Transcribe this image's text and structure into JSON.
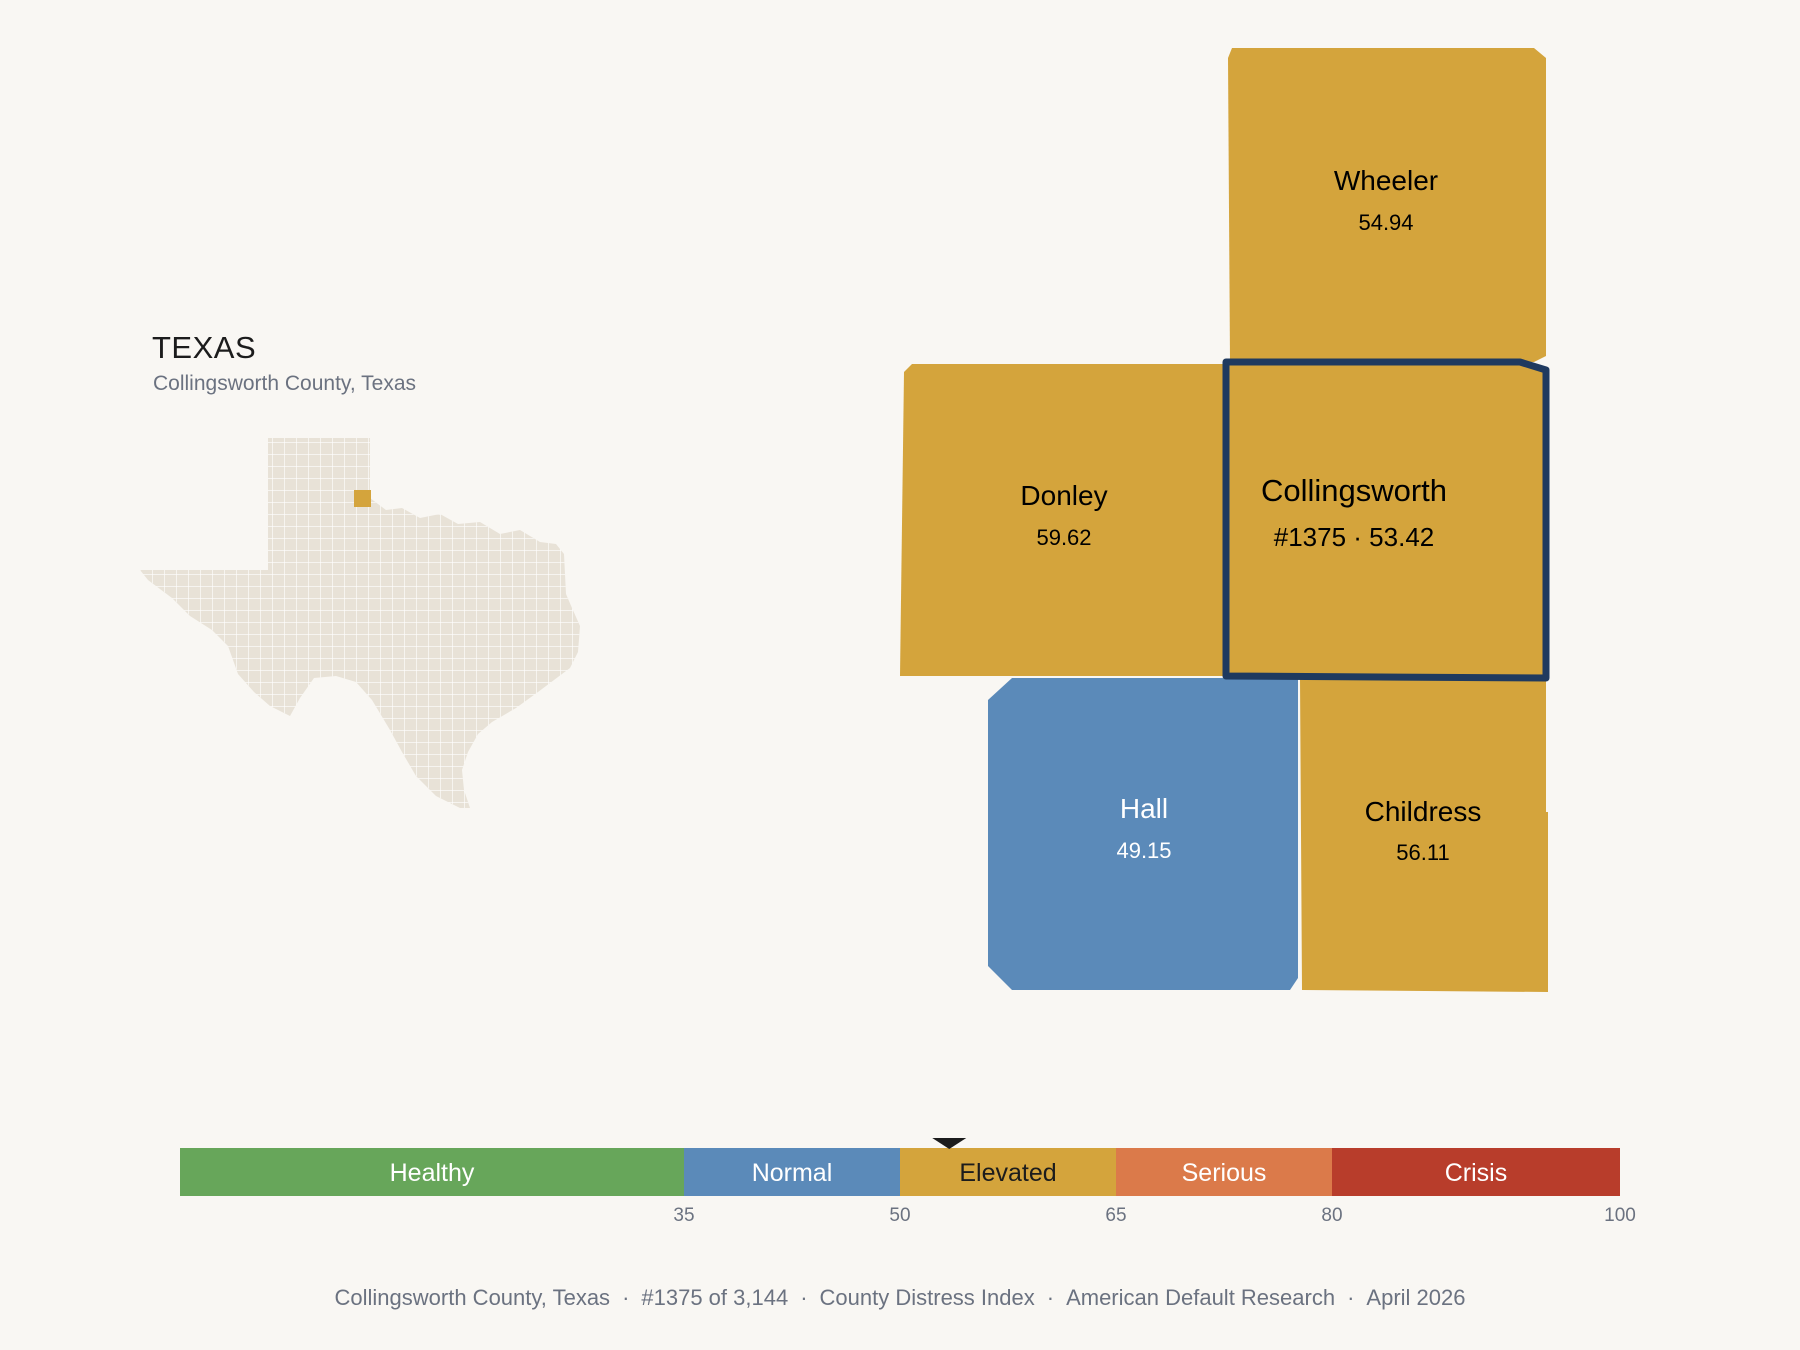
{
  "header": {
    "state": "TEXAS",
    "subtitle": "Collingsworth County, Texas"
  },
  "colors": {
    "background": "#f9f7f3",
    "state_fill": "#e8e2d7",
    "highlight": "#d4a43c",
    "selected_outline": "#1f3a5f"
  },
  "counties": [
    {
      "name": "Wheeler",
      "value": "54.94",
      "category": "Elevated",
      "selected": false
    },
    {
      "name": "Donley",
      "value": "59.62",
      "category": "Elevated",
      "selected": false
    },
    {
      "name": "Collingsworth",
      "value": "#1375 · 53.42",
      "category": "Elevated",
      "selected": true
    },
    {
      "name": "Hall",
      "value": "49.15",
      "category": "Normal",
      "selected": false
    },
    {
      "name": "Childress",
      "value": "56.11",
      "category": "Elevated",
      "selected": false
    }
  ],
  "scale": {
    "min": 0,
    "max": 100,
    "marker_value": 53.42,
    "segments": [
      {
        "label": "Healthy",
        "from": 0,
        "to": 35,
        "color": "#67a65a"
      },
      {
        "label": "Normal",
        "from": 35,
        "to": 50,
        "color": "#5b8ab9"
      },
      {
        "label": "Elevated",
        "from": 50,
        "to": 65,
        "color": "#d4a43c"
      },
      {
        "label": "Serious",
        "from": 65,
        "to": 80,
        "color": "#db7a4a"
      },
      {
        "label": "Crisis",
        "from": 80,
        "to": 100,
        "color": "#b83d2b"
      }
    ],
    "ticks": [
      "35",
      "50",
      "65",
      "80",
      "100"
    ]
  },
  "footer": {
    "county": "Collingsworth County, Texas",
    "rank": "#1375 of 3,144",
    "index": "County Distress Index",
    "org": "American Default Research",
    "date": "April 2026"
  }
}
